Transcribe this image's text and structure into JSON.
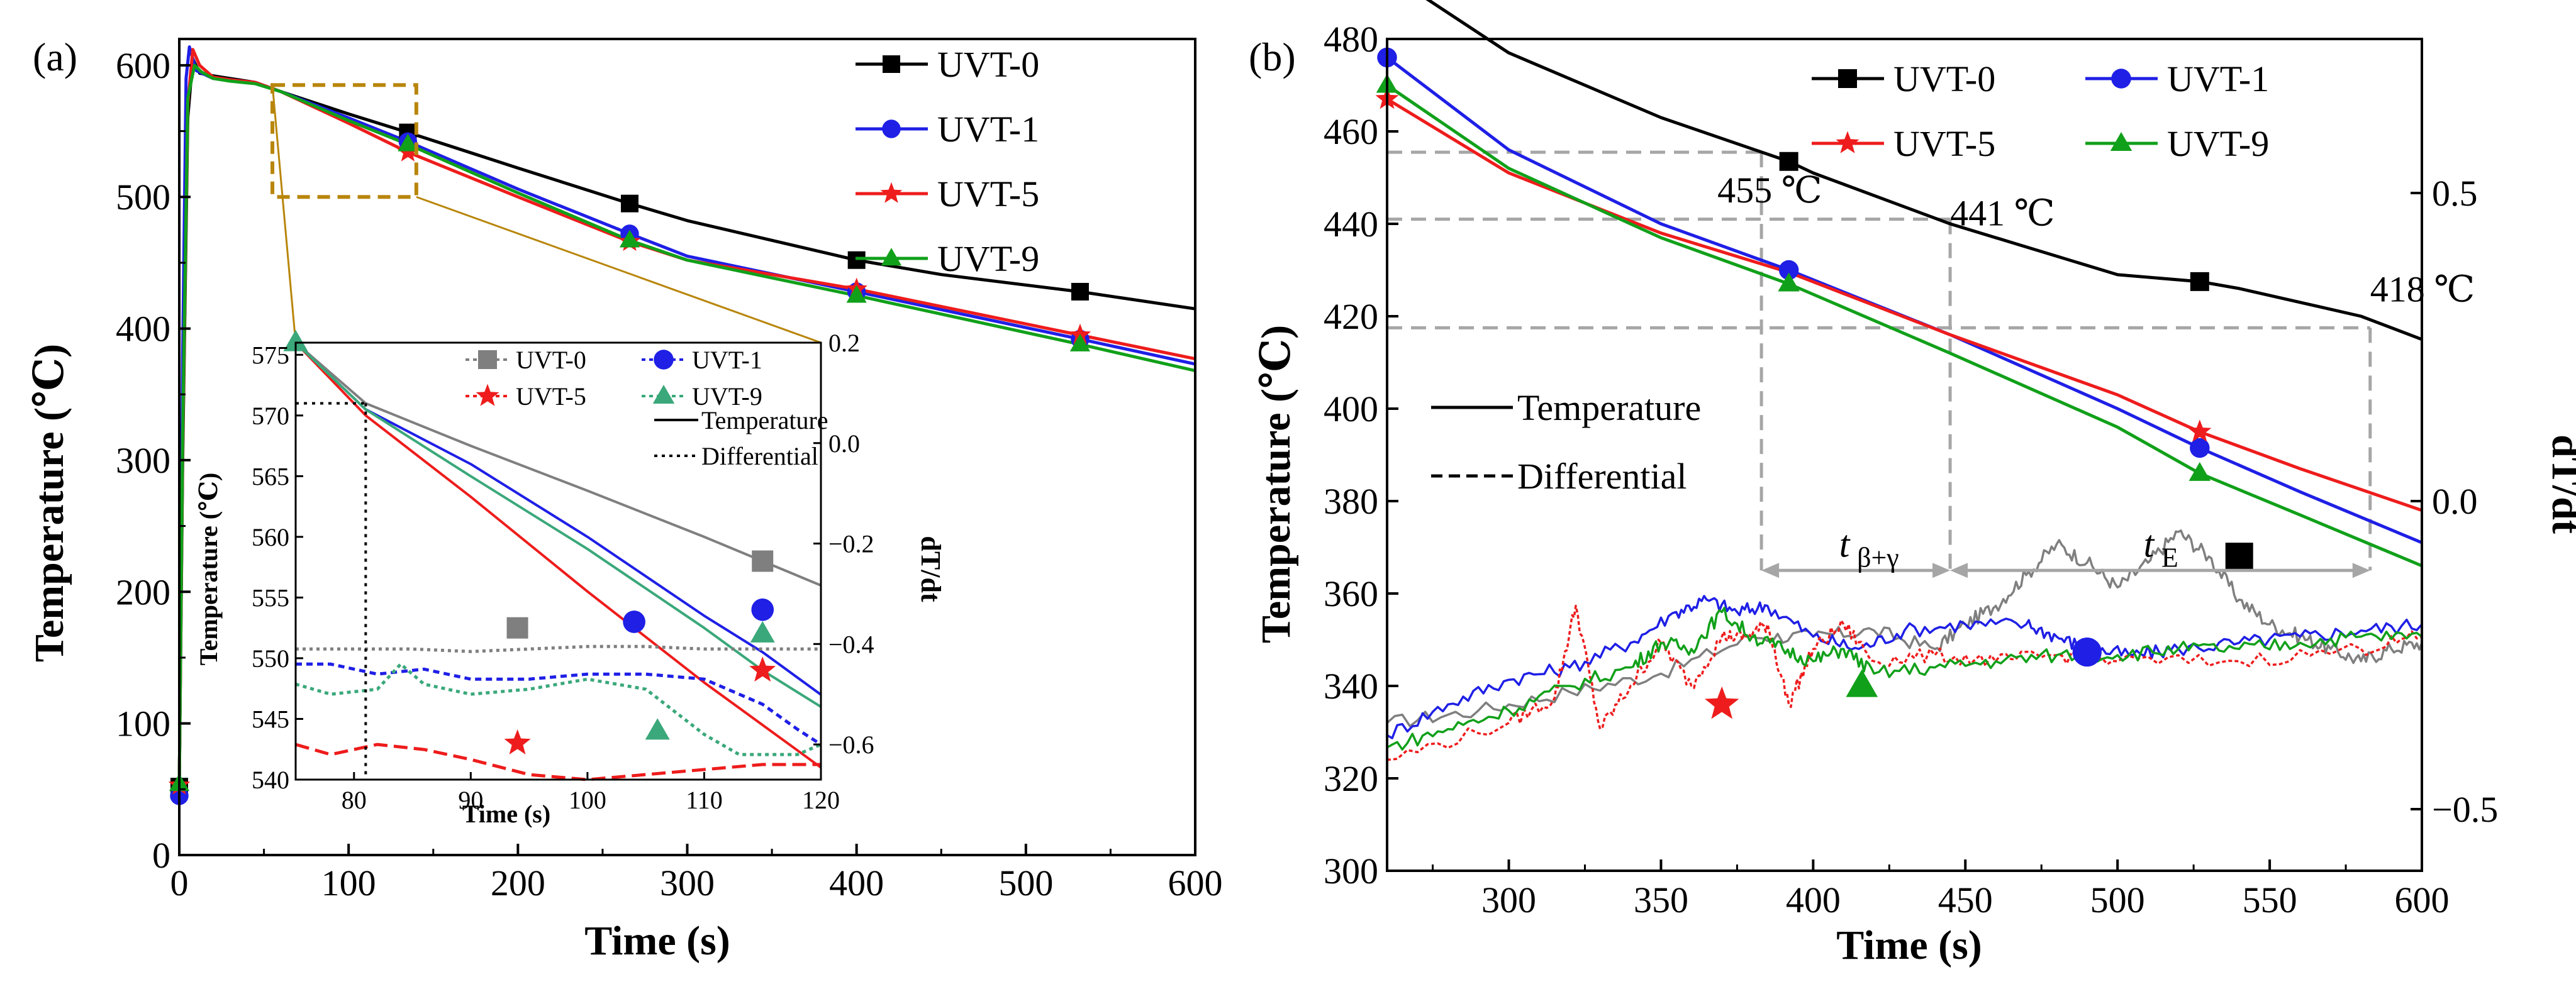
{
  "colors": {
    "uvt0": "#000000",
    "uvt1": "#1f1fe6",
    "uvt5": "#ee1c1c",
    "uvt9": "#11a01a",
    "uvt0_inset": "#7f7f7f",
    "uvt9_inset": "#3aa87a",
    "guide": "#a6a6a6",
    "zoom_box": "#b8860b"
  },
  "chart_data": [
    {
      "type": "line",
      "panel_label": "(a)",
      "xlabel": "Time (s)",
      "ylabel": "Temperature (℃)",
      "xlim": [
        0,
        600
      ],
      "ylim": [
        0,
        620
      ],
      "xticks": [
        0,
        100,
        200,
        300,
        400,
        500,
        600
      ],
      "yticks": [
        0,
        100,
        200,
        300,
        400,
        500,
        600
      ],
      "legend": [
        "UVT-0",
        "UVT-1",
        "UVT-5",
        "UVT-9"
      ],
      "series": [
        {
          "name": "UVT-0",
          "color": "#000000",
          "marker": "square",
          "x": [
            0,
            2,
            5,
            8,
            12,
            20,
            30,
            45,
            60,
            100,
            135,
            200,
            266,
            300,
            400,
            450,
            532,
            600
          ],
          "y": [
            52,
            300,
            560,
            605,
            594,
            592,
            590,
            587,
            580,
            563,
            549,
            522,
            495,
            482,
            452,
            441,
            428,
            415
          ],
          "marker_x": [
            0,
            135,
            266,
            400,
            532
          ],
          "marker_y": [
            52,
            549,
            495,
            452,
            428
          ]
        },
        {
          "name": "UVT-1",
          "color": "#1f1fe6",
          "marker": "circle",
          "x": [
            0,
            2,
            4,
            6,
            10,
            20,
            30,
            45,
            60,
            100,
            135,
            200,
            266,
            300,
            400,
            532,
            600
          ],
          "y": [
            45,
            380,
            590,
            614,
            596,
            590,
            589,
            587,
            580,
            560,
            542,
            506,
            472,
            455,
            428,
            392,
            373
          ],
          "marker_x": [
            0,
            135,
            266,
            400,
            532
          ],
          "marker_y": [
            45,
            542,
            472,
            428,
            392
          ]
        },
        {
          "name": "UVT-5",
          "color": "#ee1c1c",
          "marker": "star",
          "x": [
            0,
            2,
            5,
            8,
            12,
            20,
            30,
            45,
            60,
            100,
            135,
            200,
            266,
            300,
            400,
            532,
            600
          ],
          "y": [
            53,
            310,
            570,
            612,
            600,
            591,
            589,
            587,
            580,
            556,
            534,
            500,
            466,
            452,
            430,
            395,
            377
          ],
          "marker_x": [
            0,
            135,
            266,
            400,
            532
          ],
          "marker_y": [
            53,
            534,
            466,
            430,
            395
          ]
        },
        {
          "name": "UVT-9",
          "color": "#11a01a",
          "marker": "triangle",
          "x": [
            0,
            2,
            5,
            9,
            13,
            20,
            30,
            45,
            60,
            100,
            135,
            200,
            266,
            300,
            400,
            532,
            600
          ],
          "y": [
            54,
            320,
            575,
            600,
            595,
            590,
            588,
            586,
            580,
            558,
            540,
            503,
            467,
            452,
            425,
            388,
            368
          ],
          "marker_x": [
            0,
            135,
            266,
            400,
            532
          ],
          "marker_y": [
            54,
            540,
            467,
            425,
            388
          ]
        }
      ],
      "zoom_box": {
        "x": [
          55,
          140
        ],
        "y": [
          500,
          585
        ]
      },
      "inset": {
        "xlabel": "Time (s)",
        "ylabel": "Temperature (℃)",
        "y2label": "dT/dt",
        "xlim": [
          75,
          120
        ],
        "ylim": [
          540,
          576
        ],
        "y2lim": [
          -0.67,
          0.2
        ],
        "xticks": [
          80,
          90,
          100,
          110,
          120
        ],
        "yticks": [
          540,
          545,
          550,
          555,
          560,
          565,
          570,
          575
        ],
        "y2ticks": [
          -0.6,
          -0.4,
          -0.2,
          0.0,
          0.2
        ],
        "legend": [
          "UVT-0",
          "UVT-1",
          "UVT-5",
          "UVT-9",
          "Temperature",
          "Differential"
        ],
        "vline_x": 81,
        "temperature": [
          {
            "name": "UVT-0",
            "x": [
              75,
              81,
              90,
              100,
              110,
              115,
              120
            ],
            "y": [
              576,
              571,
              567.5,
              563.8,
              560,
              558,
              556
            ]
          },
          {
            "name": "UVT-1",
            "x": [
              75,
              81,
              90,
              100,
              110,
              115,
              120
            ],
            "y": [
              576,
              570.5,
              566,
              560,
              553.5,
              550.5,
              547
            ]
          },
          {
            "name": "UVT-5",
            "x": [
              75,
              81,
              90,
              100,
              110,
              115,
              120
            ],
            "y": [
              576,
              570,
              563.3,
              555.5,
              548,
              544.5,
              541
            ]
          },
          {
            "name": "UVT-9",
            "x": [
              75,
              81,
              90,
              100,
              110,
              115,
              120
            ],
            "y": [
              576,
              570.5,
              565,
              559,
              552.5,
              549,
              546
            ]
          }
        ],
        "differential": [
          {
            "name": "UVT-0",
            "x": [
              75,
              80,
              85,
              90,
              95,
              100,
              105,
              110,
              115,
              120
            ],
            "y": [
              -0.41,
              -0.41,
              -0.41,
              -0.415,
              -0.41,
              -0.405,
              -0.405,
              -0.41,
              -0.41,
              -0.41
            ]
          },
          {
            "name": "UVT-1",
            "x": [
              75,
              78,
              82,
              86,
              90,
              95,
              100,
              105,
              110,
              115,
              118,
              120
            ],
            "y": [
              -0.44,
              -0.44,
              -0.46,
              -0.45,
              -0.47,
              -0.47,
              -0.46,
              -0.46,
              -0.47,
              -0.52,
              -0.57,
              -0.6
            ]
          },
          {
            "name": "UVT-5",
            "x": [
              75,
              78,
              82,
              86,
              90,
              95,
              100,
              105,
              110,
              115,
              120
            ],
            "y": [
              -0.6,
              -0.62,
              -0.6,
              -0.61,
              -0.63,
              -0.66,
              -0.67,
              -0.66,
              -0.65,
              -0.64,
              -0.64
            ]
          },
          {
            "name": "UVT-9",
            "x": [
              75,
              78,
              82,
              84,
              86,
              90,
              95,
              100,
              105,
              110,
              113,
              118,
              120
            ],
            "y": [
              -0.48,
              -0.5,
              -0.49,
              -0.44,
              -0.48,
              -0.5,
              -0.49,
              -0.47,
              -0.49,
              -0.58,
              -0.62,
              -0.62,
              -0.6
            ]
          }
        ],
        "markers": [
          {
            "name": "UVT-0",
            "x": 115,
            "y": 558
          },
          {
            "name": "UVT-0",
            "x": 94,
            "y": 552.5
          },
          {
            "name": "UVT-1",
            "x": 115,
            "y": 554
          },
          {
            "name": "UVT-1",
            "x": 104,
            "y": 553
          },
          {
            "name": "UVT-5",
            "x": 115,
            "y": 549
          },
          {
            "name": "UVT-5",
            "x": 94,
            "y": 543
          },
          {
            "name": "UVT-9",
            "x": 75,
            "y": 576
          },
          {
            "name": "UVT-9",
            "x": 115,
            "y": 552
          },
          {
            "name": "UVT-9",
            "x": 106,
            "y": 544
          }
        ]
      }
    },
    {
      "type": "line",
      "panel_label": "(b)",
      "xlabel": "Time (s)",
      "ylabel": "Temperature (℃)",
      "y2label": "dT/dt",
      "xlim": [
        260,
        600
      ],
      "ylim": [
        300,
        480
      ],
      "y2lim": [
        -0.6,
        0.75
      ],
      "xticks": [
        300,
        350,
        400,
        450,
        500,
        550,
        600
      ],
      "yticks": [
        300,
        320,
        340,
        360,
        380,
        400,
        420,
        440,
        460,
        480
      ],
      "y2ticks": [
        -0.5,
        0.0,
        0.5
      ],
      "y2ticklabels": [
        "−0.5",
        "0.0",
        "0.5"
      ],
      "legend": [
        "UVT-0",
        "UVT-1",
        "UVT-5",
        "UVT-9",
        "Temperature",
        "Differential"
      ],
      "annotations": [
        {
          "text": "455 ℃",
          "x": 383,
          "y": 455.5
        },
        {
          "text": "441 ℃",
          "x": 445,
          "y": 441
        },
        {
          "text": "418 ℃",
          "x": 583,
          "y": 417.5
        }
      ],
      "intervals": [
        {
          "label": "β+γ",
          "x": [
            383,
            445
          ]
        },
        {
          "label": "E",
          "x": [
            445,
            583
          ]
        }
      ],
      "interval_letter": "t",
      "interval_y": 365,
      "temperature": [
        {
          "name": "UVT-0",
          "color": "#000000",
          "x": [
            260,
            270,
            300,
            350,
            392,
            400,
            445,
            500,
            527,
            540,
            560,
            580,
            600
          ],
          "y": [
            498,
            490,
            477,
            463,
            453.5,
            451,
            440,
            429,
            427.5,
            426,
            423,
            420,
            415
          ],
          "marker_x": [
            392,
            527
          ],
          "marker_y": [
            453.5,
            427.5
          ]
        },
        {
          "name": "UVT-1",
          "color": "#1f1fe6",
          "x": [
            260,
            300,
            350,
            392,
            445,
            500,
            527,
            560,
            600
          ],
          "y": [
            476,
            456,
            440,
            430,
            416,
            400,
            391.5,
            382,
            371
          ],
          "marker_x": [
            260,
            392,
            527
          ],
          "marker_y": [
            476,
            430,
            391.5
          ]
        },
        {
          "name": "UVT-5",
          "color": "#ee1c1c",
          "x": [
            260,
            300,
            350,
            392,
            445,
            500,
            527,
            560,
            600
          ],
          "y": [
            467,
            451,
            438,
            429.5,
            416,
            403,
            395,
            387,
            378
          ],
          "marker_x": [
            260,
            527
          ],
          "marker_y": [
            467,
            395
          ]
        },
        {
          "name": "UVT-9",
          "color": "#11a01a",
          "x": [
            260,
            300,
            350,
            392,
            445,
            500,
            527,
            560,
            600
          ],
          "y": [
            470,
            452,
            437,
            427,
            412,
            396,
            386,
            377,
            366
          ],
          "marker_x": [
            260,
            392,
            527
          ],
          "marker_y": [
            470,
            427,
            386
          ]
        }
      ],
      "differential": [
        {
          "name": "UVT-0",
          "color": "#7f7f7f",
          "x": [
            260,
            290,
            320,
            350,
            380,
            400,
            420,
            440,
            450,
            460,
            470,
            480,
            490,
            500,
            510,
            520,
            530,
            540,
            550,
            560,
            570,
            580,
            590,
            600
          ],
          "y": [
            -0.36,
            -0.34,
            -0.31,
            -0.28,
            -0.22,
            -0.22,
            -0.21,
            -0.24,
            -0.2,
            -0.17,
            -0.12,
            -0.07,
            -0.1,
            -0.14,
            -0.1,
            -0.05,
            -0.09,
            -0.16,
            -0.2,
            -0.22,
            -0.24,
            -0.26,
            -0.24,
            -0.23
          ],
          "marker_x": [
            540
          ],
          "marker_y": [
            -0.09
          ]
        },
        {
          "name": "UVT-1",
          "color": "#1f1fe6",
          "x": [
            260,
            280,
            300,
            320,
            340,
            355,
            365,
            375,
            385,
            400,
            415,
            430,
            450,
            470,
            480,
            490,
            505,
            520,
            540,
            560,
            580,
            600
          ],
          "y": [
            -0.38,
            -0.33,
            -0.29,
            -0.27,
            -0.23,
            -0.18,
            -0.16,
            -0.18,
            -0.17,
            -0.22,
            -0.24,
            -0.21,
            -0.2,
            -0.2,
            -0.22,
            -0.24,
            -0.25,
            -0.24,
            -0.23,
            -0.22,
            -0.21,
            -0.2
          ],
          "marker_x": [
            490
          ],
          "marker_y": [
            -0.245
          ]
        },
        {
          "name": "UVT-5",
          "color": "#ee1c1c",
          "x": [
            260,
            300,
            315,
            322,
            330,
            340,
            350,
            360,
            370,
            378,
            385,
            392,
            400,
            410,
            420,
            440,
            460,
            480,
            500,
            540,
            580,
            600
          ],
          "y": [
            -0.42,
            -0.36,
            -0.32,
            -0.17,
            -0.37,
            -0.3,
            -0.23,
            -0.3,
            -0.22,
            -0.22,
            -0.2,
            -0.33,
            -0.24,
            -0.2,
            -0.26,
            -0.25,
            -0.26,
            -0.25,
            -0.26,
            -0.26,
            -0.24,
            -0.22
          ],
          "marker_x": [
            370
          ],
          "marker_y": [
            -0.33
          ]
        },
        {
          "name": "UVT-9",
          "color": "#11a01a",
          "x": [
            260,
            280,
            300,
            320,
            340,
            350,
            360,
            370,
            380,
            390,
            400,
            410,
            420,
            440,
            460,
            480,
            500,
            520,
            540,
            560,
            580,
            600
          ],
          "y": [
            -0.4,
            -0.37,
            -0.34,
            -0.3,
            -0.27,
            -0.23,
            -0.24,
            -0.18,
            -0.22,
            -0.24,
            -0.26,
            -0.24,
            -0.28,
            -0.27,
            -0.26,
            -0.25,
            -0.25,
            -0.24,
            -0.24,
            -0.23,
            -0.22,
            -0.22
          ],
          "marker_x": [
            416
          ],
          "marker_y": [
            -0.3
          ]
        }
      ]
    }
  ]
}
